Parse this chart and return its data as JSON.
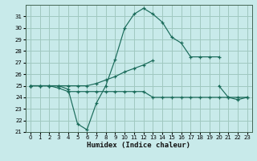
{
  "xlabel": "Humidex (Indice chaleur)",
  "xlim": [
    -0.5,
    23.5
  ],
  "ylim": [
    21,
    32
  ],
  "yticks": [
    21,
    22,
    23,
    24,
    25,
    26,
    27,
    28,
    29,
    30,
    31
  ],
  "xticks": [
    0,
    1,
    2,
    3,
    4,
    5,
    6,
    7,
    8,
    9,
    10,
    11,
    12,
    13,
    14,
    15,
    16,
    17,
    18,
    19,
    20,
    21,
    22,
    23
  ],
  "background_color": "#c8eaea",
  "grid_color": "#a0c8c0",
  "line_color": "#1a6b5a",
  "series": [
    {
      "x": [
        0,
        1,
        2,
        3,
        4,
        5,
        6,
        7,
        8,
        9,
        10,
        11,
        12,
        13,
        14,
        15,
        16,
        17,
        18,
        19,
        20
      ],
      "y": [
        25.0,
        25.0,
        25.0,
        25.0,
        24.7,
        21.7,
        21.2,
        23.5,
        25.0,
        27.3,
        30.0,
        31.2,
        31.7,
        31.2,
        30.5,
        29.2,
        28.7,
        27.5,
        27.5,
        27.5,
        27.5
      ]
    },
    {
      "x": [
        0,
        1,
        2,
        3,
        4,
        5,
        6,
        7,
        8,
        9,
        10,
        11,
        12,
        13,
        14,
        15,
        16,
        17,
        18,
        19,
        20,
        21,
        22,
        23
      ],
      "y": [
        25.0,
        25.0,
        25.0,
        24.8,
        24.5,
        24.5,
        24.5,
        24.5,
        24.5,
        24.5,
        24.5,
        24.5,
        24.5,
        24.0,
        24.0,
        24.0,
        24.0,
        24.0,
        24.0,
        24.0,
        24.0,
        24.0,
        24.0,
        24.0
      ]
    },
    {
      "x": [
        0,
        1,
        2,
        3,
        4,
        5,
        6,
        7,
        8,
        9,
        10,
        11,
        12,
        13,
        14,
        15,
        16,
        17,
        18,
        19,
        20,
        21,
        22,
        23
      ],
      "y": [
        25.0,
        25.0,
        25.0,
        25.0,
        25.0,
        25.0,
        25.0,
        25.2,
        25.5,
        25.8,
        26.2,
        26.5,
        26.8,
        27.2,
        null,
        null,
        null,
        null,
        null,
        null,
        null,
        null,
        null,
        null
      ]
    },
    {
      "x": [
        0,
        1,
        2,
        3,
        4,
        5,
        6,
        7,
        8,
        9,
        10,
        11,
        12,
        13,
        14,
        15,
        16,
        17,
        18,
        19,
        20,
        21,
        22,
        23
      ],
      "y": [
        25.0,
        null,
        null,
        null,
        null,
        null,
        null,
        null,
        null,
        null,
        null,
        null,
        null,
        null,
        null,
        null,
        null,
        null,
        null,
        null,
        25.0,
        24.0,
        23.8,
        24.0
      ]
    }
  ]
}
